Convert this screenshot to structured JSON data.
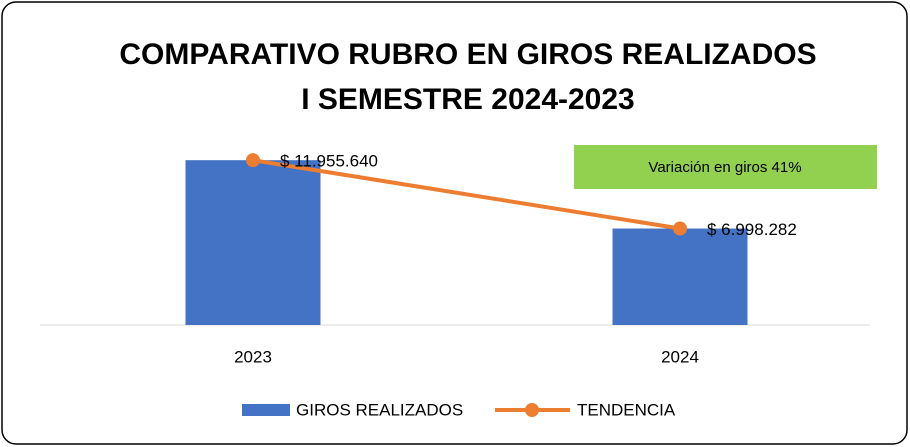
{
  "chart_data": {
    "type": "bar",
    "title": [
      "COMPARATIVO RUBRO EN GIROS REALIZADOS",
      "I SEMESTRE 2024-2023"
    ],
    "categories": [
      "2023",
      "2024"
    ],
    "series": [
      {
        "name": "GIROS REALIZADOS",
        "type": "bar",
        "color": "#4472c4",
        "values": [
          11955640,
          6998282
        ],
        "value_labels": [
          "$ 11.955.640",
          "$ 6.998.282"
        ]
      },
      {
        "name": "TENDENCIA",
        "type": "line",
        "color": "#ed7d31",
        "values": [
          11955640,
          6998282
        ]
      }
    ],
    "annotation": {
      "text": "Variación en giros 41%",
      "color": "#92d050"
    },
    "ylim": [
      0,
      14000000
    ],
    "legend": "bottom"
  }
}
